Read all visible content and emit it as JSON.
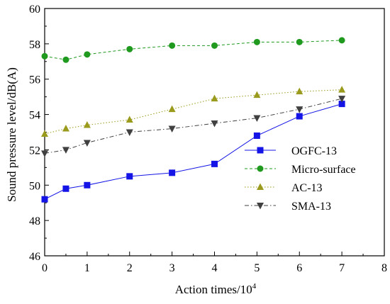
{
  "chart_data": {
    "type": "line",
    "title": "",
    "xlabel": "Action times/10",
    "xlabel_sup": "4",
    "ylabel": "Sound pressure level/dB(A)",
    "xlim": [
      0,
      8
    ],
    "ylim": [
      46,
      60
    ],
    "x_ticks": [
      "0",
      "1",
      "2",
      "3",
      "4",
      "5",
      "6",
      "7",
      "8"
    ],
    "y_ticks": [
      "46",
      "48",
      "50",
      "52",
      "54",
      "56",
      "58",
      "60"
    ],
    "grid": false,
    "legend_position": "lower-right",
    "x": [
      0,
      0.5,
      1,
      2,
      3,
      4,
      5,
      6,
      7
    ],
    "series": [
      {
        "name": "OGFC-13",
        "marker": "square",
        "line": "solid",
        "color": "#1414e6",
        "values": [
          49.2,
          49.8,
          50.0,
          50.5,
          50.7,
          51.2,
          52.8,
          53.9,
          54.6
        ]
      },
      {
        "name": "Micro-surface",
        "marker": "circle",
        "line": "dashed",
        "color": "#1f9a1f",
        "values": [
          57.3,
          57.1,
          57.4,
          57.7,
          57.9,
          57.9,
          58.1,
          58.1,
          58.2
        ]
      },
      {
        "name": "AC-13",
        "marker": "triangle-up",
        "line": "dotted",
        "color": "#9a9a1c",
        "values": [
          52.9,
          53.2,
          53.4,
          53.7,
          54.3,
          54.9,
          55.1,
          55.3,
          55.4
        ]
      },
      {
        "name": "SMA-13",
        "marker": "triangle-down",
        "line": "dashdot",
        "color": "#404040",
        "values": [
          51.8,
          52.0,
          52.4,
          53.0,
          53.2,
          53.5,
          53.8,
          54.3,
          54.9
        ]
      }
    ]
  }
}
